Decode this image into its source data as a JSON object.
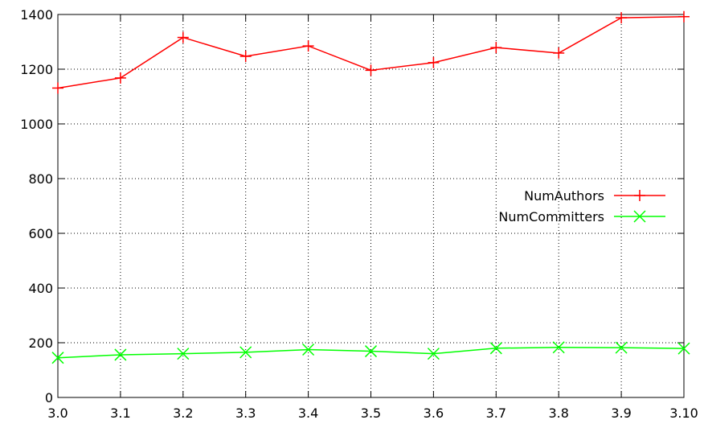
{
  "chart_data": {
    "type": "line",
    "title": "",
    "xlabel": "",
    "ylabel": "",
    "categories": [
      "3.0",
      "3.1",
      "3.2",
      "3.3",
      "3.4",
      "3.5",
      "3.6",
      "3.7",
      "3.8",
      "3.9",
      "3.10"
    ],
    "ylim": [
      0,
      1400
    ],
    "yticks": [
      "0",
      "200",
      "400",
      "600",
      "800",
      "1000",
      "1200",
      "1400"
    ],
    "grid": true,
    "legend_position": "right",
    "series": [
      {
        "name": "NumAuthors",
        "color": "#ff0000",
        "marker": "plus",
        "values": [
          1131,
          1168,
          1316,
          1247,
          1285,
          1196,
          1224,
          1279,
          1259,
          1388,
          1392
        ]
      },
      {
        "name": "NumCommitters",
        "color": "#00ff00",
        "marker": "cross",
        "values": [
          145,
          156,
          160,
          165,
          175,
          169,
          160,
          180,
          183,
          182,
          179
        ]
      }
    ]
  }
}
